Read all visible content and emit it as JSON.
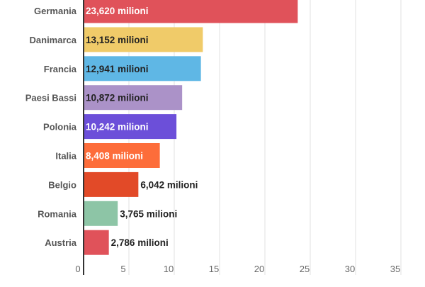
{
  "chart_data": {
    "type": "bar",
    "orientation": "horizontal",
    "categories": [
      "Germania",
      "Danimarca",
      "Francia",
      "Paesi Bassi",
      "Polonia",
      "Italia",
      "Belgio",
      "Romania",
      "Austria"
    ],
    "values": [
      23.62,
      13.152,
      12.941,
      10.872,
      10.242,
      8.408,
      6.042,
      3.765,
      2.786
    ],
    "data_labels": [
      "23,620 milioni",
      "13,152 milioni",
      "12,941 milioni",
      "10,872 milioni",
      "10,242 milioni",
      "8,408 milioni",
      "6,042 milioni",
      "3,765 milioni",
      "2,786 milioni"
    ],
    "colors": [
      "#e0525a",
      "#f0cb69",
      "#5fb7e5",
      "#ab92c8",
      "#6c4fd9",
      "#fd6d3a",
      "#e24a28",
      "#8dc5a6",
      "#e0525a"
    ],
    "label_colors": [
      "#ffffff",
      "#222222",
      "#222222",
      "#222222",
      "#ffffff",
      "#ffffff",
      "#222222",
      "#222222",
      "#222222"
    ],
    "label_inside": [
      true,
      true,
      true,
      true,
      true,
      true,
      false,
      false,
      false
    ],
    "xticks": [
      "0",
      "5",
      "10",
      "15",
      "20",
      "25",
      "30",
      "35"
    ],
    "xlim": [
      0,
      37.6
    ],
    "grid": true,
    "title": "",
    "xlabel": "",
    "ylabel": ""
  }
}
